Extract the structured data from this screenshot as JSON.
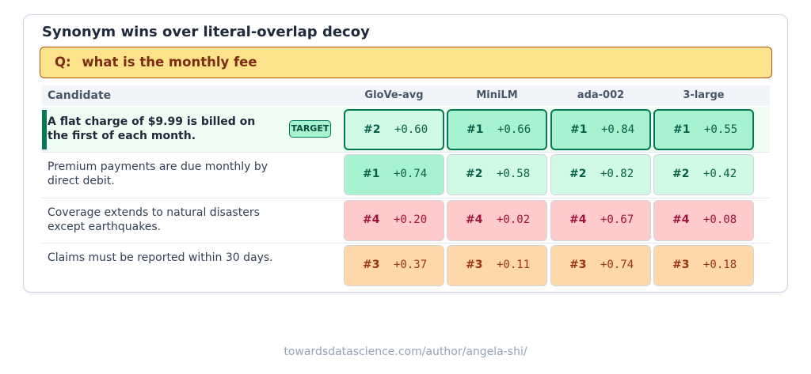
{
  "title": "Synonym wins over literal-overlap decoy",
  "query": {
    "prefix": "Q:",
    "text": "what is the monthly fee"
  },
  "table": {
    "candidate_header": "Candidate",
    "models": [
      "GloVe-avg",
      "MiniLM",
      "ada-002",
      "3-large"
    ],
    "target_badge": "TARGET",
    "rows": [
      {
        "text": "A flat charge of $9.99 is billed on the first of each month.",
        "is_target": true,
        "cells": [
          {
            "rank": "#2",
            "score": "+0.60"
          },
          {
            "rank": "#1",
            "score": "+0.66"
          },
          {
            "rank": "#1",
            "score": "+0.84"
          },
          {
            "rank": "#1",
            "score": "+0.55"
          }
        ]
      },
      {
        "text": "Premium payments are due monthly by direct debit.",
        "is_target": false,
        "cells": [
          {
            "rank": "#1",
            "score": "+0.74"
          },
          {
            "rank": "#2",
            "score": "+0.58"
          },
          {
            "rank": "#2",
            "score": "+0.82"
          },
          {
            "rank": "#2",
            "score": "+0.42"
          }
        ]
      },
      {
        "text": "Coverage extends to natural disasters except earthquakes.",
        "is_target": false,
        "cells": [
          {
            "rank": "#4",
            "score": "+0.20"
          },
          {
            "rank": "#4",
            "score": "+0.02"
          },
          {
            "rank": "#4",
            "score": "+0.67"
          },
          {
            "rank": "#4",
            "score": "+0.08"
          }
        ]
      },
      {
        "text": "Claims must be reported within 30 days.",
        "is_target": false,
        "cells": [
          {
            "rank": "#3",
            "score": "+0.37"
          },
          {
            "rank": "#3",
            "score": "+0.11"
          },
          {
            "rank": "#3",
            "score": "+0.74"
          },
          {
            "rank": "#3",
            "score": "+0.18"
          }
        ]
      }
    ]
  },
  "colors": {
    "rank_1": "#a7f3d0",
    "rank_2": "#d1fae5",
    "rank_3": "#fed7aa",
    "rank_4": "#fecaca",
    "target_accent": "#047857",
    "query_fill": "#fde38c"
  },
  "footer": "towardsdatascience.com/author/angela-shi/"
}
